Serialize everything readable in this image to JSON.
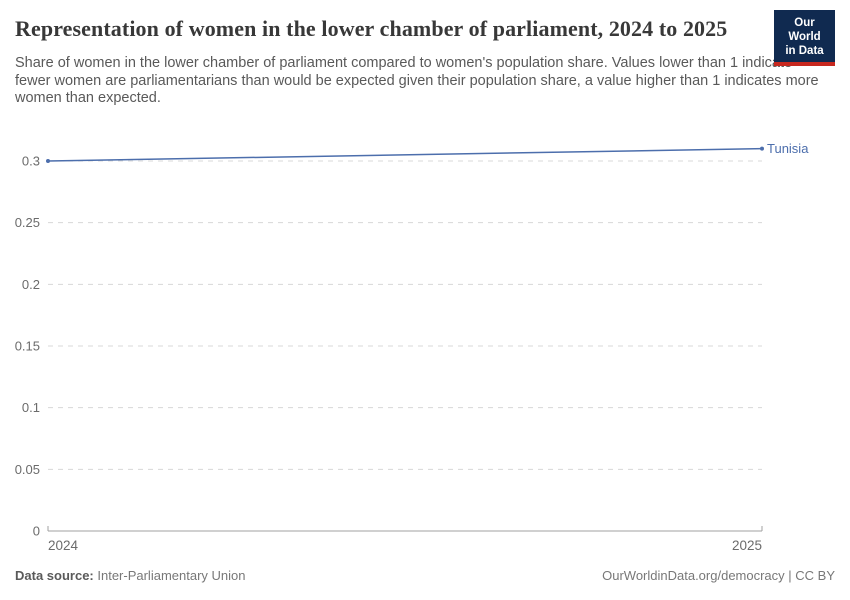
{
  "header": {
    "title": "Representation of women in the lower chamber of parliament, 2024 to 2025",
    "subtitle": "Share of women in the lower chamber of parliament compared to women's population share. Values lower than 1 indicate fewer women are parliamentarians than would be expected given their population share, a value higher than 1 indicates more women than expected."
  },
  "logo": {
    "line1": "Our World",
    "line2": "in Data",
    "bg_color": "#102a50",
    "bar_color": "#c7281f"
  },
  "chart_data": {
    "type": "line",
    "title": "Representation of women in the lower chamber of parliament, 2024 to 2025",
    "x": [
      2024,
      2025
    ],
    "series": [
      {
        "name": "Tunisia",
        "values": [
          0.3,
          0.31
        ],
        "color": "#4C6EAC"
      }
    ],
    "xlabel": "",
    "ylabel": "",
    "xlim": [
      2024,
      2025
    ],
    "ylim": [
      0,
      0.3
    ],
    "yticks": [
      0,
      0.05,
      0.1,
      0.15,
      0.2,
      0.25,
      0.3
    ],
    "ytick_labels": [
      "0",
      "0.05",
      "0.1",
      "0.15",
      "0.2",
      "0.25",
      "0.3"
    ],
    "xtick_labels": [
      "2024",
      "2025"
    ],
    "grid": "horizontal-dashed",
    "legend_position": "line-end-label",
    "colors": {
      "gridline": "#d8d8d8",
      "axis": "#a0a0a0",
      "tick_text": "#6b6b6b",
      "series_label": "#4C6EAC"
    }
  },
  "footer": {
    "source_label": "Data source:",
    "source_value": " Inter-Parliamentary Union",
    "attribution": "OurWorldinData.org/democracy | CC BY"
  }
}
